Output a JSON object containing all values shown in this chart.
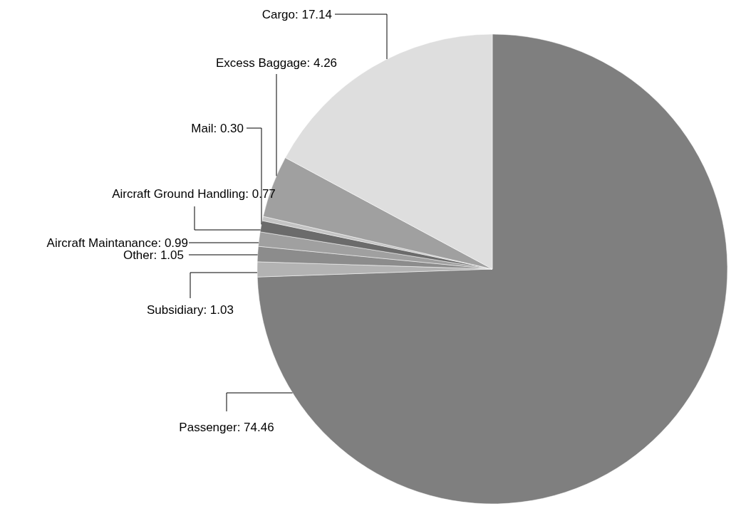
{
  "chart_data": {
    "type": "pie",
    "categories": [
      "Passenger",
      "Subsidiary",
      "Other",
      "Aircraft Maintanance",
      "Aircraft Ground Handling",
      "Mail",
      "Excess Baggage",
      "Cargo"
    ],
    "values": [
      74.46,
      1.03,
      1.05,
      0.99,
      0.77,
      0.3,
      4.26,
      17.14
    ],
    "value_labels": [
      ": 74.46",
      ": 1.03",
      ": 1.05",
      ": 0.99",
      ": 0.77",
      ": 0.30",
      ": 4.26",
      ": 17.14"
    ],
    "data_labels": true,
    "colors": [
      "#7f7f7f",
      "#b3b3b3",
      "#8c8c8c",
      "#a0a0a0",
      "#6b6b6b",
      "#c4c4c4",
      "#a0a0a0",
      "#dedede"
    ]
  }
}
